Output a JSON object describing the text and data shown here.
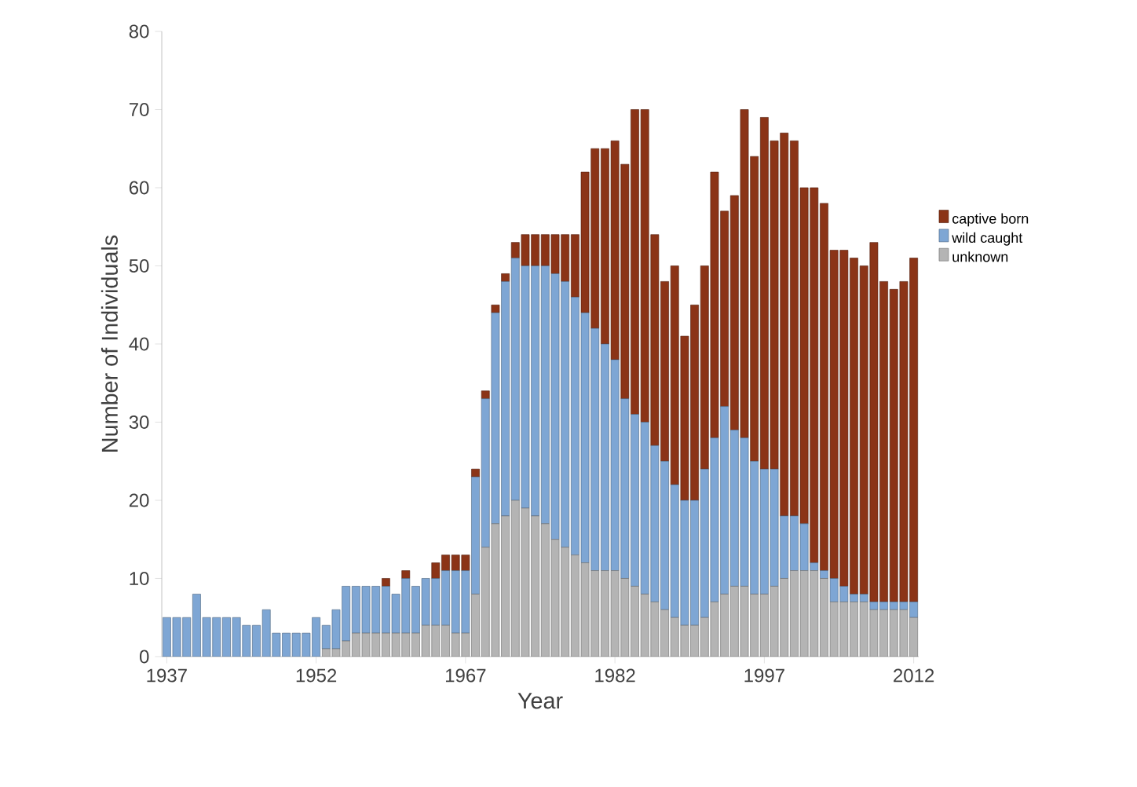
{
  "chart_data": {
    "type": "bar",
    "stacked": true,
    "xlabel": "Year",
    "ylabel": "Number of Individuals",
    "x": [
      1937,
      1938,
      1939,
      1940,
      1941,
      1942,
      1943,
      1944,
      1945,
      1946,
      1947,
      1948,
      1949,
      1950,
      1951,
      1952,
      1953,
      1954,
      1955,
      1956,
      1957,
      1958,
      1959,
      1960,
      1961,
      1962,
      1963,
      1964,
      1965,
      1966,
      1967,
      1968,
      1969,
      1970,
      1971,
      1972,
      1973,
      1974,
      1975,
      1976,
      1977,
      1978,
      1979,
      1980,
      1981,
      1982,
      1983,
      1984,
      1985,
      1986,
      1987,
      1988,
      1989,
      1990,
      1991,
      1992,
      1993,
      1994,
      1995,
      1996,
      1997,
      1998,
      1999,
      2000,
      2001,
      2002,
      2003,
      2004,
      2005,
      2006,
      2007,
      2008,
      2009,
      2010,
      2011,
      2012
    ],
    "series": [
      {
        "name": "unknown",
        "color": "#b4b4b4",
        "values": [
          0,
          0,
          0,
          0,
          0,
          0,
          0,
          0,
          0,
          0,
          0,
          0,
          0,
          0,
          0,
          0,
          1,
          1,
          2,
          3,
          3,
          3,
          3,
          3,
          3,
          3,
          4,
          4,
          4,
          3,
          3,
          8,
          14,
          17,
          18,
          20,
          19,
          18,
          17,
          15,
          14,
          13,
          12,
          11,
          11,
          11,
          10,
          9,
          8,
          7,
          6,
          5,
          4,
          4,
          5,
          7,
          8,
          9,
          9,
          8,
          8,
          9,
          10,
          11,
          11,
          11,
          10,
          7,
          7,
          7,
          7,
          6,
          6,
          6,
          6,
          5
        ]
      },
      {
        "name": "wild caught",
        "color": "#7ea6d4",
        "values": [
          5,
          5,
          5,
          8,
          5,
          5,
          5,
          5,
          4,
          4,
          6,
          3,
          3,
          3,
          3,
          5,
          3,
          5,
          7,
          6,
          6,
          6,
          6,
          5,
          7,
          6,
          6,
          6,
          7,
          8,
          8,
          15,
          19,
          27,
          30,
          31,
          31,
          32,
          33,
          34,
          34,
          33,
          32,
          31,
          29,
          27,
          23,
          22,
          22,
          20,
          19,
          17,
          16,
          16,
          19,
          21,
          24,
          20,
          19,
          17,
          16,
          15,
          8,
          7,
          6,
          1,
          1,
          3,
          2,
          1,
          1,
          1,
          1,
          1,
          1,
          2
        ]
      },
      {
        "name": "captive born",
        "color": "#8b3417",
        "values": [
          0,
          0,
          0,
          0,
          0,
          0,
          0,
          0,
          0,
          0,
          0,
          0,
          0,
          0,
          0,
          0,
          0,
          0,
          0,
          0,
          0,
          0,
          1,
          0,
          1,
          0,
          0,
          2,
          2,
          2,
          2,
          1,
          1,
          1,
          1,
          2,
          4,
          4,
          4,
          5,
          6,
          8,
          18,
          23,
          25,
          28,
          30,
          39,
          40,
          27,
          23,
          28,
          21,
          25,
          26,
          34,
          25,
          30,
          42,
          39,
          45,
          42,
          49,
          48,
          43,
          48,
          47,
          42,
          43,
          43,
          42,
          46,
          41,
          40,
          41,
          44
        ]
      }
    ],
    "xlim": [
      1936.5,
      2012.5
    ],
    "xticks": [
      1937,
      1952,
      1967,
      1982,
      1997,
      2012
    ],
    "ylim": [
      0,
      80
    ],
    "yticks": [
      0,
      10,
      20,
      30,
      40,
      50,
      60,
      70,
      80
    ],
    "legend": "right",
    "grid": false
  }
}
